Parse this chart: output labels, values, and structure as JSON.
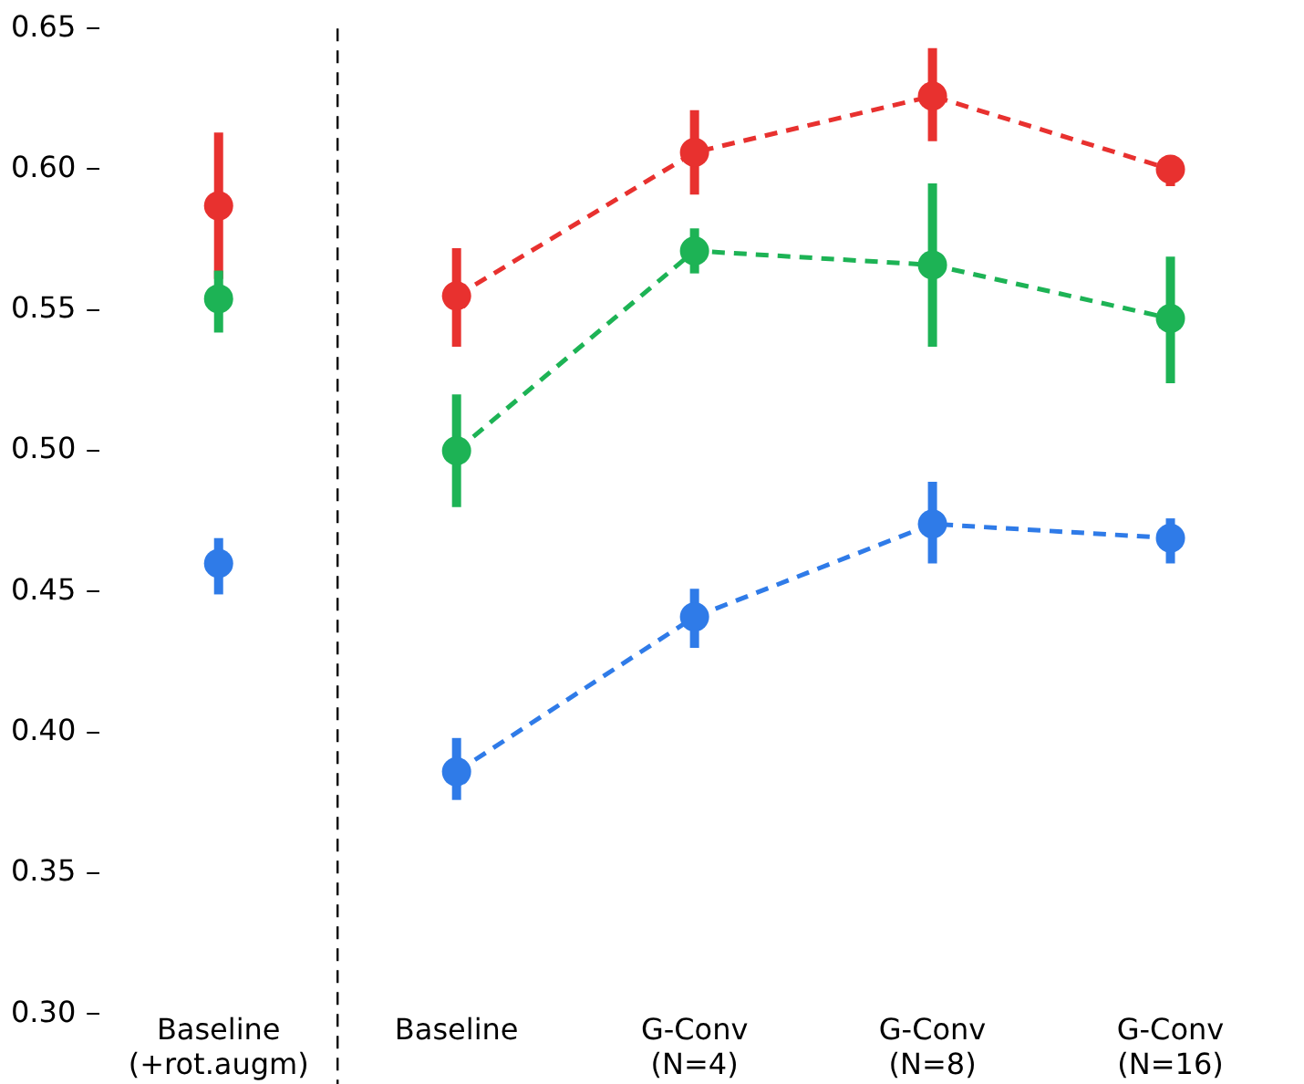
{
  "chart_data": {
    "type": "line",
    "categories": [
      "Baseline\n(+rot.augm)",
      "Baseline",
      "G-Conv\n(N=4)",
      "G-Conv\n(N=8)",
      "G-Conv\n(N=16)"
    ],
    "ylim": [
      0.3,
      0.65
    ],
    "yticks": [
      {
        "value": 0.3,
        "label": "0.30"
      },
      {
        "value": 0.35,
        "label": "0.35"
      },
      {
        "value": 0.4,
        "label": "0.40"
      },
      {
        "value": 0.45,
        "label": "0.45"
      },
      {
        "value": 0.5,
        "label": "0.50"
      },
      {
        "value": 0.55,
        "label": "0.55"
      },
      {
        "value": 0.6,
        "label": "0.60"
      },
      {
        "value": 0.65,
        "label": "0.65"
      }
    ],
    "grid": false,
    "legend": false,
    "marker": "circle",
    "line_style": "dashed",
    "series": [
      {
        "type": "scatter",
        "color": "#e8312f",
        "values": [
          0.587,
          null,
          null,
          null,
          null
        ],
        "errors": [
          [
            0.561,
            0.613
          ],
          null,
          null,
          null,
          null
        ]
      },
      {
        "type": "scatter",
        "color": "#1db355",
        "values": [
          0.554,
          null,
          null,
          null,
          null
        ],
        "errors": [
          [
            0.542,
            0.564
          ],
          null,
          null,
          null,
          null
        ]
      },
      {
        "type": "scatter",
        "color": "#2f7be8",
        "values": [
          0.46,
          null,
          null,
          null,
          null
        ],
        "errors": [
          [
            0.449,
            0.469
          ],
          null,
          null,
          null,
          null
        ]
      },
      {
        "color": "#e8312f",
        "values": [
          null,
          0.555,
          0.606,
          0.626,
          0.6
        ],
        "errors": [
          null,
          [
            0.537,
            0.572
          ],
          [
            0.591,
            0.621
          ],
          [
            0.61,
            0.643
          ],
          [
            0.594,
            0.605
          ]
        ]
      },
      {
        "color": "#1db355",
        "values": [
          null,
          0.5,
          0.571,
          0.566,
          0.547
        ],
        "errors": [
          null,
          [
            0.48,
            0.52
          ],
          [
            0.563,
            0.579
          ],
          [
            0.537,
            0.595
          ],
          [
            0.524,
            0.569
          ]
        ]
      },
      {
        "color": "#2f7be8",
        "values": [
          null,
          0.386,
          0.441,
          0.474,
          0.469
        ],
        "errors": [
          null,
          [
            0.376,
            0.398
          ],
          [
            0.43,
            0.451
          ],
          [
            0.46,
            0.489
          ],
          [
            0.46,
            0.476
          ]
        ]
      }
    ]
  }
}
